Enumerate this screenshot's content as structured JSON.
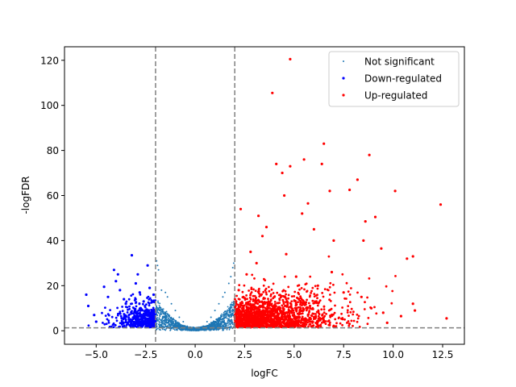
{
  "chart_data": {
    "type": "scatter",
    "title": "",
    "xlabel": "logFC",
    "ylabel": "-logFDR",
    "xlim": [
      -6.6,
      13.6
    ],
    "ylim": [
      -6,
      126
    ],
    "xticks": [
      -5.0,
      -2.5,
      0.0,
      2.5,
      5.0,
      7.5,
      10.0,
      12.5
    ],
    "xtick_labels": [
      "−5.0",
      "−2.5",
      "0.0",
      "2.5",
      "5.0",
      "7.5",
      "10.0",
      "12.5"
    ],
    "yticks": [
      0,
      20,
      40,
      60,
      80,
      100,
      120
    ],
    "ytick_labels": [
      "0",
      "20",
      "40",
      "60",
      "80",
      "100",
      "120"
    ],
    "grid": false,
    "legend_position": "top-right",
    "threshold_lines": {
      "x": [
        -2,
        2
      ],
      "y": 1.3,
      "style": "dashed",
      "color": "#808080"
    },
    "series": [
      {
        "name": "Not significant",
        "color": "#1f77b4",
        "marker_size": "small",
        "points": [
          [
            -1.95,
            31
          ],
          [
            -1.9,
            29
          ],
          [
            -1.85,
            27
          ],
          [
            -1.7,
            18
          ],
          [
            -1.5,
            17
          ],
          [
            -1.4,
            15
          ],
          [
            -1.2,
            12
          ],
          [
            -1.0,
            9
          ],
          [
            -0.8,
            6
          ],
          [
            -0.6,
            4
          ],
          [
            -0.4,
            2
          ],
          [
            -0.2,
            1
          ],
          [
            0.0,
            0.5
          ],
          [
            0.2,
            1
          ],
          [
            0.4,
            2
          ],
          [
            0.6,
            4
          ],
          [
            0.8,
            6
          ],
          [
            1.0,
            9
          ],
          [
            1.2,
            12
          ],
          [
            1.4,
            15
          ],
          [
            1.5,
            17
          ],
          [
            1.7,
            21
          ],
          [
            1.8,
            24
          ],
          [
            1.9,
            28
          ],
          [
            1.95,
            30
          ]
        ]
      },
      {
        "name": "Down-regulated",
        "color": "#0000ff",
        "marker_size": "medium",
        "points": [
          [
            -5.5,
            16
          ],
          [
            -5.4,
            11
          ],
          [
            -5.1,
            7
          ],
          [
            -5.0,
            4
          ],
          [
            -4.6,
            19.5
          ],
          [
            -4.4,
            15
          ],
          [
            -4.1,
            27
          ],
          [
            -4.0,
            22
          ],
          [
            -3.9,
            25
          ],
          [
            -3.8,
            18
          ],
          [
            -3.6,
            14
          ],
          [
            -3.5,
            12
          ],
          [
            -3.2,
            33.5
          ],
          [
            -3.0,
            21
          ],
          [
            -2.9,
            25
          ],
          [
            -2.8,
            17
          ],
          [
            -2.6,
            13
          ],
          [
            -2.4,
            29
          ],
          [
            -2.3,
            19
          ],
          [
            -2.1,
            16
          ]
        ]
      },
      {
        "name": "Up-regulated",
        "color": "#ff0000",
        "marker_size": "medium",
        "points": [
          [
            4.8,
            120.5
          ],
          [
            3.9,
            105.5
          ],
          [
            6.5,
            83
          ],
          [
            8.8,
            78
          ],
          [
            4.1,
            74
          ],
          [
            5.5,
            76
          ],
          [
            6.4,
            74
          ],
          [
            4.8,
            73
          ],
          [
            4.4,
            70
          ],
          [
            8.2,
            67
          ],
          [
            6.8,
            62
          ],
          [
            7.8,
            62.5
          ],
          [
            10.1,
            62
          ],
          [
            12.4,
            56
          ],
          [
            5.7,
            56.5
          ],
          [
            4.5,
            60
          ],
          [
            5.4,
            52
          ],
          [
            6.0,
            45
          ],
          [
            8.6,
            48.5
          ],
          [
            9.1,
            50.5
          ],
          [
            2.3,
            54
          ],
          [
            3.2,
            51
          ],
          [
            3.6,
            46
          ],
          [
            3.4,
            42
          ],
          [
            7.0,
            40
          ],
          [
            8.5,
            40
          ],
          [
            9.4,
            36.5
          ],
          [
            10.7,
            32
          ],
          [
            11.0,
            33
          ],
          [
            11.0,
            12
          ],
          [
            11.1,
            9
          ],
          [
            10.4,
            6.5
          ],
          [
            12.7,
            5.5
          ],
          [
            9.7,
            3.5
          ],
          [
            9.5,
            8
          ],
          [
            8.4,
            15
          ],
          [
            6.2,
            20
          ],
          [
            4.0,
            15
          ],
          [
            3.1,
            30
          ],
          [
            2.6,
            25
          ],
          [
            2.2,
            18
          ],
          [
            5.1,
            24
          ],
          [
            7.5,
            17
          ],
          [
            2.8,
            35
          ],
          [
            4.6,
            34
          ],
          [
            6.9,
            26
          ],
          [
            8.9,
            10
          ],
          [
            5.8,
            11
          ],
          [
            3.3,
            7
          ],
          [
            2.4,
            10
          ]
        ]
      }
    ]
  }
}
